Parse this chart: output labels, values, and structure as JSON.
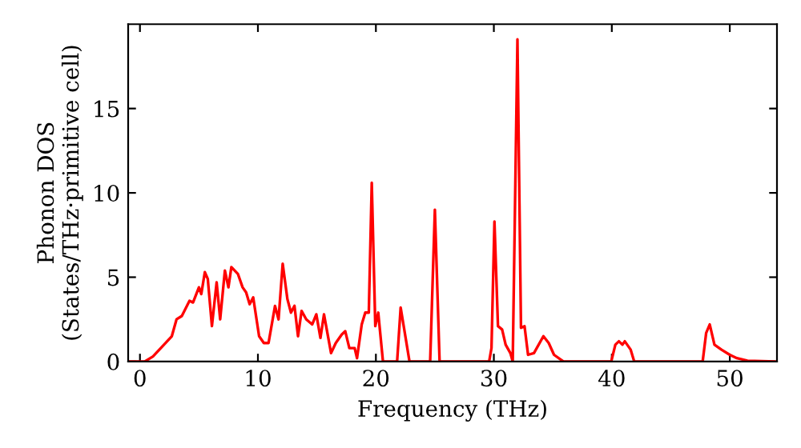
{
  "chart_data": {
    "type": "line",
    "xlabel": "Frequency (THz)",
    "ylabel": "Phonon DOS\n(States/THz·primitive cell)",
    "xlim": [
      -1,
      54
    ],
    "ylim": [
      0,
      20
    ],
    "xticks": [
      0,
      10,
      20,
      30,
      40,
      50
    ],
    "yticks": [
      0,
      5,
      10,
      15
    ],
    "grid": false,
    "legend": false,
    "marker": "none",
    "line_style": "solid",
    "series": [
      {
        "color": "#ff0000",
        "x": [
          -0.9,
          0.4,
          1.1,
          2.7,
          3.1,
          3.55,
          4.2,
          4.5,
          5.0,
          5.2,
          5.5,
          5.75,
          6.1,
          6.5,
          6.8,
          7.2,
          7.5,
          7.75,
          8.3,
          8.7,
          9.0,
          9.3,
          9.6,
          10.1,
          10.5,
          10.9,
          11.45,
          11.75,
          12.1,
          12.5,
          12.8,
          13.1,
          13.4,
          13.7,
          14.1,
          14.6,
          14.95,
          15.3,
          15.6,
          16.2,
          16.6,
          17.1,
          17.4,
          17.75,
          18.2,
          18.4,
          18.8,
          19.1,
          19.4,
          19.65,
          19.95,
          20.2,
          20.6,
          21.8,
          22.1,
          22.85,
          24.6,
          25.0,
          25.4,
          29.6,
          29.8,
          30.05,
          30.35,
          30.7,
          31.0,
          31.4,
          31.6,
          32.0,
          32.3,
          32.6,
          32.9,
          33.4,
          34.2,
          34.65,
          35.1,
          35.9,
          39.95,
          40.3,
          40.6,
          40.9,
          41.1,
          41.6,
          41.9,
          47.7,
          48.0,
          48.3,
          48.7,
          49.3,
          50.0,
          50.6,
          51.5,
          53.8
        ],
        "values": [
          0,
          0,
          0.3,
          1.5,
          2.5,
          2.7,
          3.6,
          3.5,
          4.4,
          4.0,
          5.3,
          4.9,
          2.1,
          4.7,
          2.5,
          5.4,
          4.4,
          5.6,
          5.2,
          4.4,
          4.1,
          3.4,
          3.8,
          1.5,
          1.1,
          1.1,
          3.3,
          2.5,
          5.8,
          3.7,
          2.9,
          3.3,
          1.5,
          3.0,
          2.5,
          2.2,
          2.8,
          1.4,
          2.8,
          0.5,
          1.1,
          1.6,
          1.8,
          0.8,
          0.8,
          0.2,
          2.2,
          2.9,
          2.9,
          10.6,
          2.1,
          2.9,
          0,
          0,
          3.2,
          0,
          0,
          9.0,
          0,
          0,
          0.8,
          8.3,
          2.1,
          1.9,
          1.0,
          0.5,
          0,
          19.1,
          2.0,
          2.1,
          0.4,
          0.5,
          1.5,
          1.1,
          0.4,
          0,
          0,
          1.0,
          1.2,
          1.0,
          1.2,
          0.7,
          0,
          0,
          1.7,
          2.2,
          1.0,
          0.7,
          0.4,
          0.2,
          0.05,
          0
        ]
      }
    ]
  }
}
